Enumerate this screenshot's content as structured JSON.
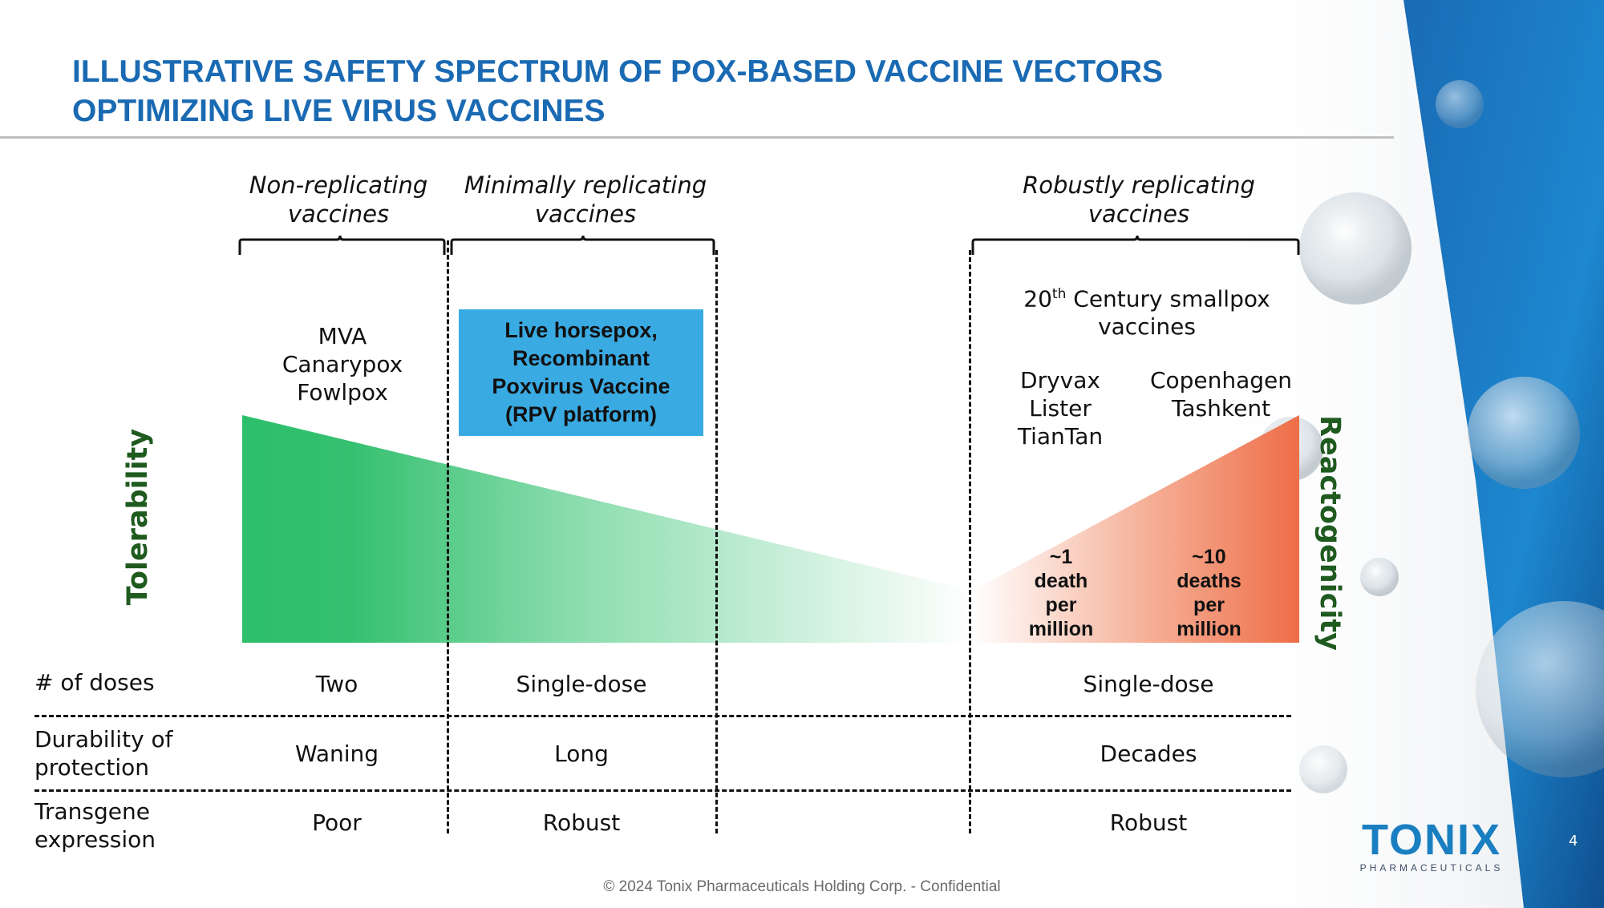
{
  "title": {
    "line1": "ILLUSTRATIVE SAFETY SPECTRUM OF POX-BASED VACCINE VECTORS",
    "line2": "OPTIMIZING LIVE VIRUS VACCINES"
  },
  "categories": {
    "non_replicating": {
      "line1": "Non-replicating",
      "line2": "vaccines"
    },
    "minimally_replicating": {
      "line1": "Minimally replicating",
      "line2": "vaccines"
    },
    "robustly_replicating": {
      "line1": "Robustly replicating",
      "line2": "vaccines"
    }
  },
  "non_replicating_vaccines": [
    "MVA",
    "Canarypox",
    "Fowlpox"
  ],
  "rpv_box": {
    "lines": [
      "Live horsepox,",
      "Recombinant",
      "Poxvirus Vaccine",
      "(RPV platform)"
    ]
  },
  "smallpox_heading": {
    "prefix": "20",
    "sup": "th",
    "rest": " Century smallpox",
    "line2": "vaccines"
  },
  "smallpox_group_a": [
    "Dryvax",
    "Lister",
    "TianTan"
  ],
  "smallpox_group_b": [
    "Copenhagen",
    "Tashkent"
  ],
  "axis": {
    "left": "Tolerability",
    "right": "Reactogenicity"
  },
  "death_rates": {
    "a": [
      "~1",
      "death",
      "per",
      "million"
    ],
    "b": [
      "~10",
      "deaths",
      "per",
      "million"
    ]
  },
  "table": {
    "rows": [
      {
        "label": [
          "# of doses"
        ],
        "non": "Two",
        "minimal": "Single-dose",
        "robust": "Single-dose"
      },
      {
        "label": [
          "Durability of",
          "protection"
        ],
        "non": "Waning",
        "minimal": "Long",
        "robust": "Decades"
      },
      {
        "label": [
          "Transgene",
          "expression"
        ],
        "non": "Poor",
        "minimal": "Robust",
        "robust": "Robust"
      }
    ]
  },
  "colors": {
    "title": "#1a6ab3",
    "rpv_box": "#3aaae2",
    "tolerability": "#2dbf6b",
    "reactogenicity": "#ee6e48",
    "axis_label": "#1f5a1f"
  },
  "footer": "© 2024 Tonix Pharmaceuticals Holding Corp. - Confidential",
  "page_number": "4",
  "logo": {
    "word": "TONIX",
    "sub": "PHARMACEUTICALS"
  }
}
